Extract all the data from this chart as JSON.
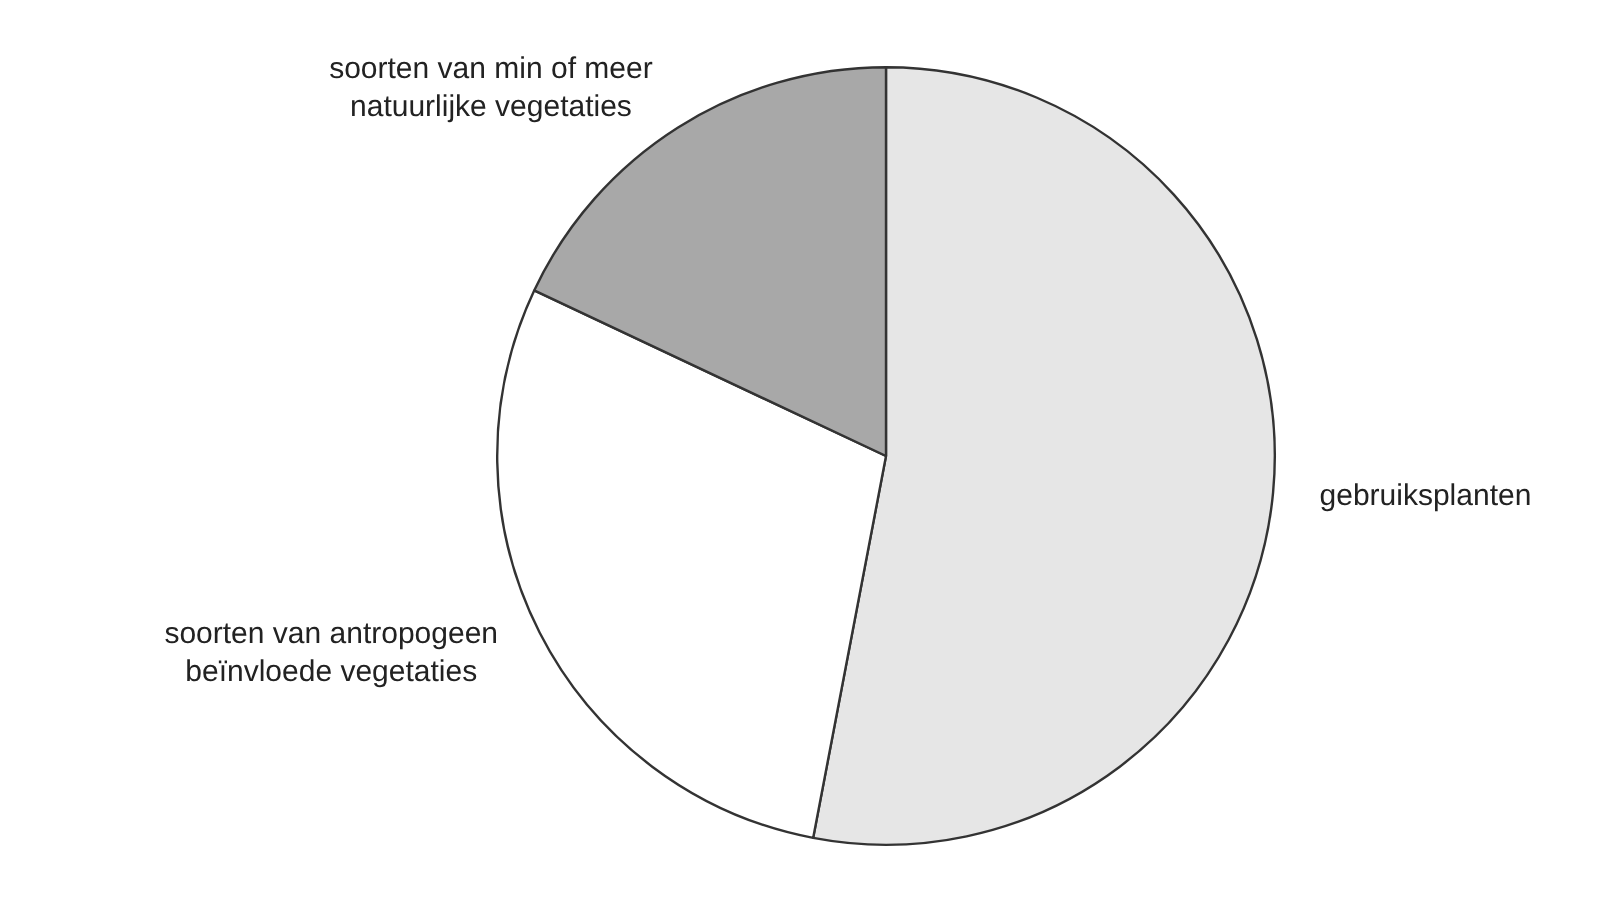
{
  "chart_data": {
    "type": "pie",
    "categories": [
      "gebruiksplanten",
      "soorten van antropogeen beïnvloede vegetaties",
      "soorten van min of meer natuurlijke vegetaties"
    ],
    "values": [
      53,
      29,
      18
    ],
    "colors": [
      "#e6e6e6",
      "#ffffff",
      "#a8a8a8"
    ]
  }
}
